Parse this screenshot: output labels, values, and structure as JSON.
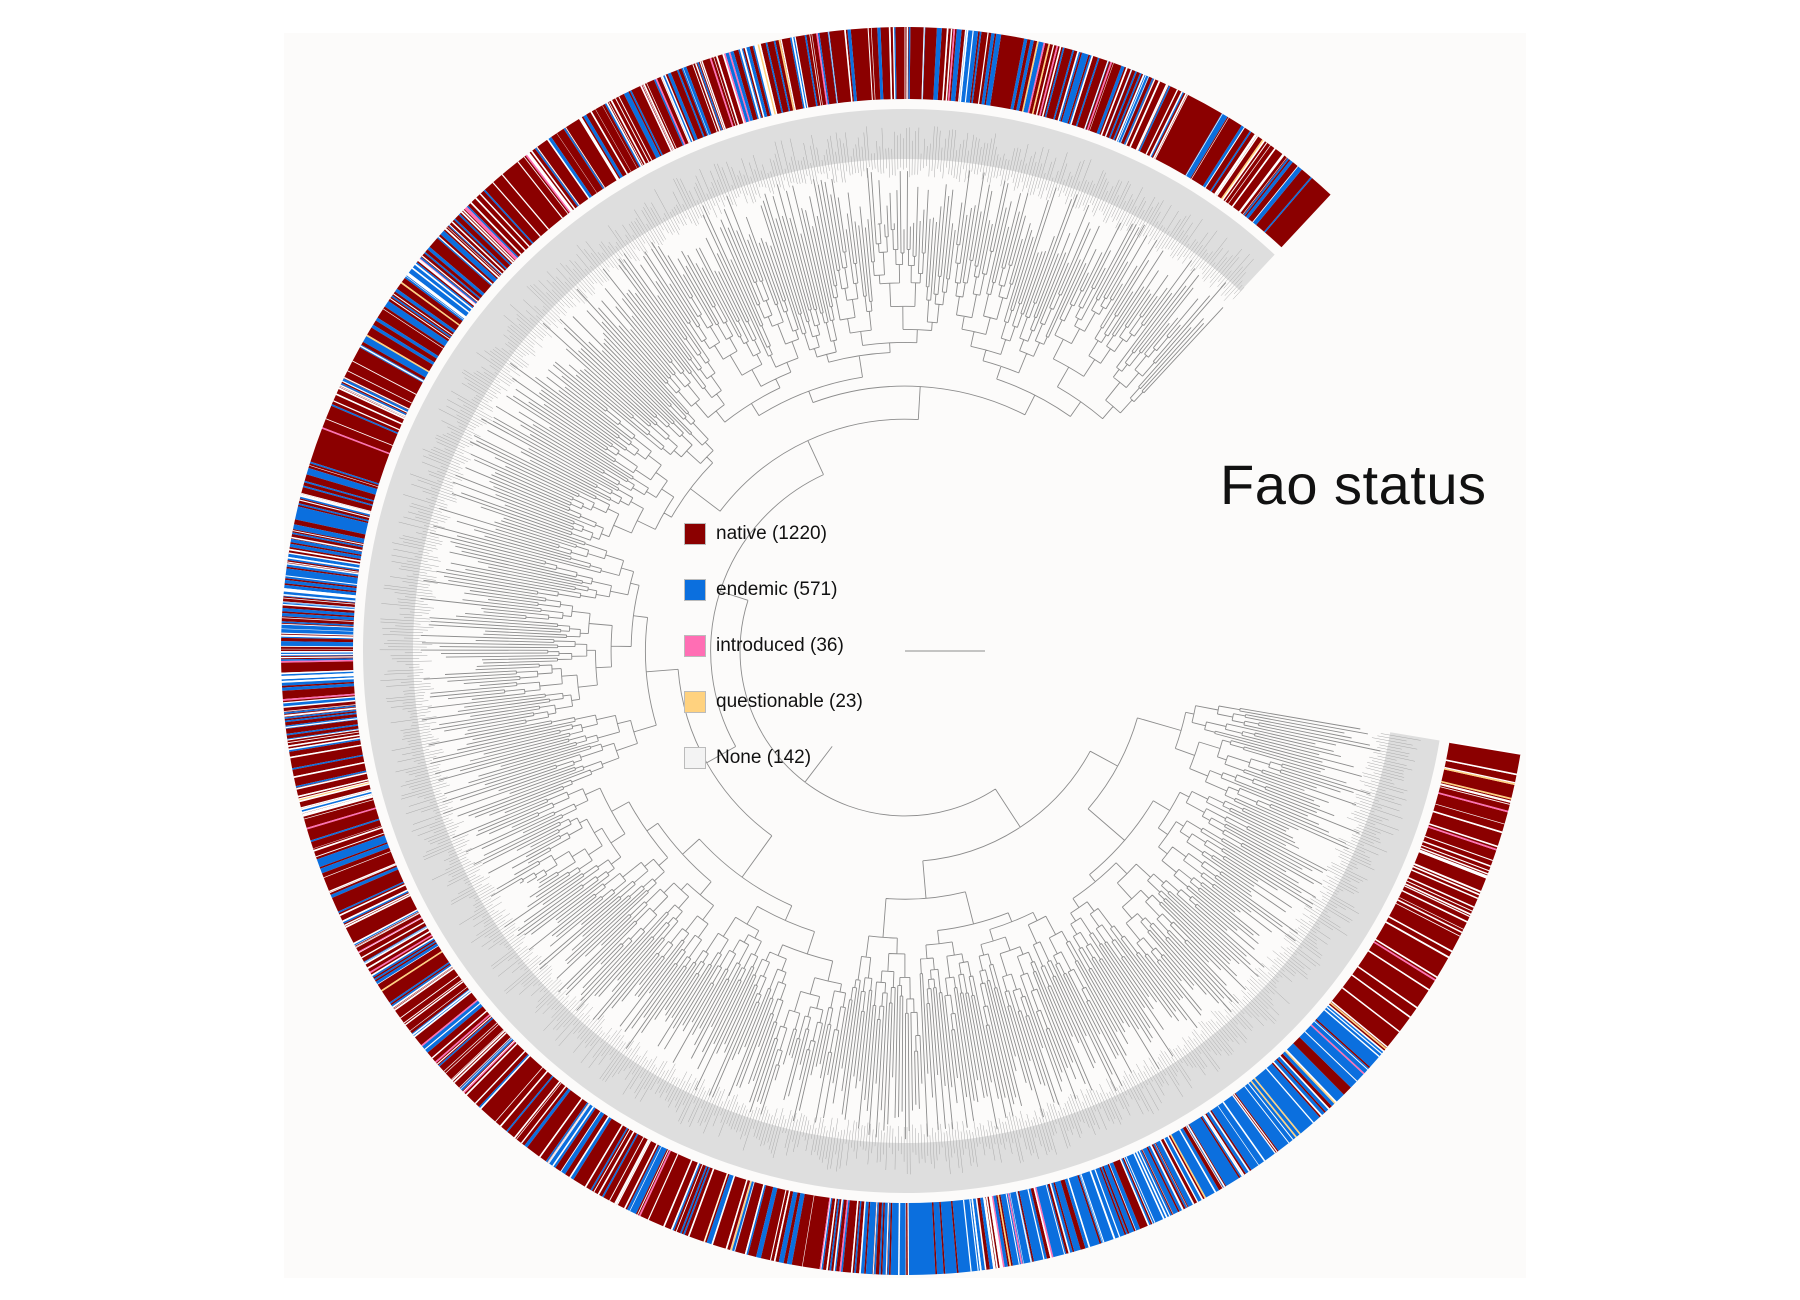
{
  "title": "Fao status",
  "legend": {
    "items": [
      {
        "key": "native",
        "label": "native (1220)",
        "count": 1220,
        "color": "#8b0000"
      },
      {
        "key": "endemic",
        "label": "endemic (571)",
        "count": 571,
        "color": "#0b6fde"
      },
      {
        "key": "introduced",
        "label": "introduced (36)",
        "count": 36,
        "color": "#ff6eb4"
      },
      {
        "key": "questionable",
        "label": "questionable (23)",
        "count": 23,
        "color": "#ffd27f"
      },
      {
        "key": "none",
        "label": "None (142)",
        "count": 142,
        "color": "#f3f3f3"
      }
    ]
  },
  "colors": {
    "panel_background": "#fcfbfa",
    "tree_branches": "#8c8c8c",
    "tip_label_band": "#dedede",
    "tip_label_text": "#aaaaaa"
  },
  "tree": {
    "layout": "circular",
    "total_tips": 1992,
    "open_gap": "right"
  }
}
